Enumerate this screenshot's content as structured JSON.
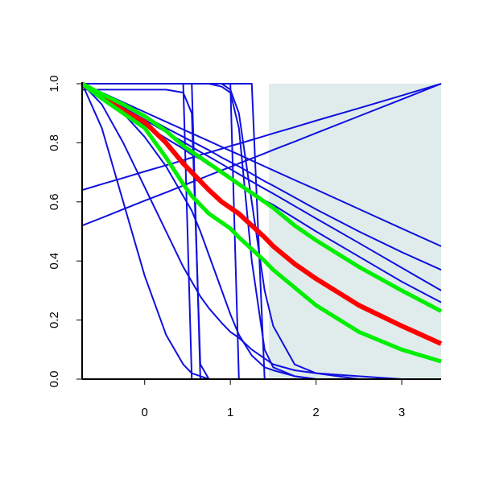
{
  "chart_data": {
    "type": "line",
    "x": [
      -0.73,
      -0.5,
      -0.25,
      0,
      0.25,
      0.45,
      0.55,
      0.65,
      0.75,
      0.9,
      1,
      1.1,
      1.25,
      1.4,
      1.5,
      1.75,
      2,
      2.5,
      3,
      3.46
    ],
    "xlim": [
      -0.73,
      3.46
    ],
    "ylim": [
      0,
      1
    ],
    "xticks": [
      0,
      1,
      2,
      3
    ],
    "yticks": [
      {
        "value": 0,
        "label": "0.0"
      },
      {
        "value": 0.2,
        "label": "0.2"
      },
      {
        "value": 0.4,
        "label": "0.4"
      },
      {
        "value": 0.6,
        "label": "0.6"
      },
      {
        "value": 0.8,
        "label": "0.8"
      },
      {
        "value": 1,
        "label": "1.0"
      }
    ],
    "shaded_region": {
      "x": [
        1.45,
        3.46
      ],
      "y": [
        0,
        1
      ],
      "color": "#e0ecec"
    },
    "series": [
      {
        "color": "#1010e0",
        "width": 2,
        "values": [
          1,
          0.97,
          0.937,
          0.904,
          0.871,
          0.845,
          0.832,
          0.819,
          0.806,
          0.786,
          0.773,
          0.76,
          0.74,
          0.72,
          0.707,
          0.674,
          0.642,
          0.576,
          0.51,
          0.45
        ]
      },
      {
        "color": "#1010e0",
        "width": 2,
        "values": [
          1,
          0.962,
          0.92,
          0.878,
          0.836,
          0.803,
          0.786,
          0.769,
          0.753,
          0.728,
          0.711,
          0.694,
          0.669,
          0.644,
          0.628,
          0.586,
          0.544,
          0.461,
          0.377,
          0.3
        ]
      },
      {
        "color": "#1010e0",
        "width": 2,
        "values": [
          1,
          0.955,
          0.905,
          0.86,
          0.815,
          0.78,
          0.76,
          0.745,
          0.725,
          0.7,
          0.68,
          0.66,
          0.635,
          0.605,
          0.59,
          0.545,
          0.5,
          0.415,
          0.33,
          0.26
        ]
      },
      {
        "color": "#1010e0",
        "width": 2,
        "values": [
          1,
          0.965,
          0.93,
          0.89,
          0.85,
          0.82,
          0.805,
          0.79,
          0.775,
          0.75,
          0.735,
          0.72,
          0.695,
          0.67,
          0.655,
          0.615,
          0.575,
          0.5,
          0.43,
          0.37
        ]
      },
      {
        "color": "#1010e0",
        "width": 2,
        "values": [
          0.64,
          0.66,
          0.681,
          0.703,
          0.724,
          0.741,
          0.75,
          0.759,
          0.767,
          0.78,
          0.789,
          0.797,
          0.81,
          0.823,
          0.832,
          0.853,
          0.875,
          0.917,
          0.96,
          1.0
        ]
      },
      {
        "color": "#1010e0",
        "width": 2,
        "values": [
          0.52,
          0.546,
          0.575,
          0.604,
          0.632,
          0.655,
          0.667,
          0.678,
          0.69,
          0.707,
          0.718,
          0.73,
          0.747,
          0.764,
          0.776,
          0.804,
          0.833,
          0.89,
          0.947,
          1.0
        ]
      },
      {
        "color": "#1010e0",
        "width": 2,
        "values": [
          1,
          1,
          1,
          1,
          1,
          1,
          0,
          0,
          0,
          0,
          0,
          0,
          0,
          0,
          0,
          0,
          0,
          0,
          0,
          0
        ]
      },
      {
        "color": "#1010e0",
        "width": 2,
        "values": [
          1,
          1,
          1,
          1,
          1,
          1,
          1,
          0,
          0,
          0,
          0,
          0,
          0,
          0,
          0,
          0,
          0,
          0,
          0,
          0
        ]
      },
      {
        "color": "#1010e0",
        "width": 2,
        "values": [
          0.98,
          0.98,
          0.98,
          0.98,
          0.98,
          0.97,
          0.9,
          0.05,
          0,
          0,
          0,
          0,
          0,
          0,
          0,
          0,
          0,
          0,
          0,
          0
        ]
      },
      {
        "color": "#1010e0",
        "width": 2,
        "values": [
          1,
          1,
          1,
          1,
          1,
          1,
          1,
          1,
          1,
          1,
          1,
          0,
          0,
          0,
          0,
          0,
          0,
          0,
          0,
          0
        ]
      },
      {
        "color": "#1010e0",
        "width": 2,
        "values": [
          1,
          1,
          1,
          1,
          1,
          1,
          1,
          1,
          1,
          1,
          1,
          1,
          1,
          0,
          0,
          0,
          0,
          0,
          0,
          0
        ]
      },
      {
        "color": "#1010e0",
        "width": 2,
        "values": [
          1,
          1,
          1,
          1,
          1,
          1,
          1,
          1,
          1,
          0.99,
          0.97,
          0.85,
          0.4,
          0.1,
          0.04,
          0.01,
          0,
          0,
          0,
          0
        ]
      },
      {
        "color": "#1010e0",
        "width": 2,
        "values": [
          1,
          1,
          1,
          1,
          1,
          1,
          1,
          1,
          1,
          1,
          0.98,
          0.9,
          0.6,
          0.3,
          0.18,
          0.05,
          0.02,
          0,
          0,
          0
        ]
      },
      {
        "color": "#1010e0",
        "width": 2,
        "values": [
          1,
          0.85,
          0.6,
          0.35,
          0.15,
          0.05,
          0.02,
          0.01,
          0,
          0,
          0,
          0,
          0,
          0,
          0,
          0,
          0,
          0,
          0,
          0
        ]
      },
      {
        "color": "#1010e0",
        "width": 2,
        "values": [
          1,
          0.93,
          0.8,
          0.65,
          0.5,
          0.38,
          0.33,
          0.28,
          0.24,
          0.19,
          0.16,
          0.14,
          0.1,
          0.07,
          0.05,
          0.03,
          0.02,
          0.01,
          0,
          0
        ]
      },
      {
        "color": "#1010e0",
        "width": 2,
        "values": [
          1,
          0.96,
          0.9,
          0.82,
          0.72,
          0.62,
          0.57,
          0.5,
          0.42,
          0.3,
          0.22,
          0.15,
          0.08,
          0.04,
          0.03,
          0.01,
          0,
          0,
          0,
          0
        ]
      },
      {
        "color": "#ff0000",
        "width": 6,
        "values": [
          1,
          0.955,
          0.91,
          0.87,
          0.8,
          0.73,
          0.7,
          0.67,
          0.64,
          0.6,
          0.58,
          0.56,
          0.52,
          0.48,
          0.45,
          0.39,
          0.34,
          0.25,
          0.18,
          0.12
        ]
      },
      {
        "color": "#00ee00",
        "width": 5,
        "values": [
          1,
          0.965,
          0.93,
          0.89,
          0.84,
          0.79,
          0.77,
          0.75,
          0.73,
          0.7,
          0.68,
          0.66,
          0.63,
          0.6,
          0.58,
          0.52,
          0.47,
          0.38,
          0.3,
          0.23
        ]
      },
      {
        "color": "#00ee00",
        "width": 5,
        "values": [
          1,
          0.95,
          0.9,
          0.85,
          0.75,
          0.66,
          0.62,
          0.59,
          0.56,
          0.53,
          0.51,
          0.48,
          0.44,
          0.4,
          0.37,
          0.31,
          0.25,
          0.16,
          0.1,
          0.06
        ]
      }
    ]
  }
}
